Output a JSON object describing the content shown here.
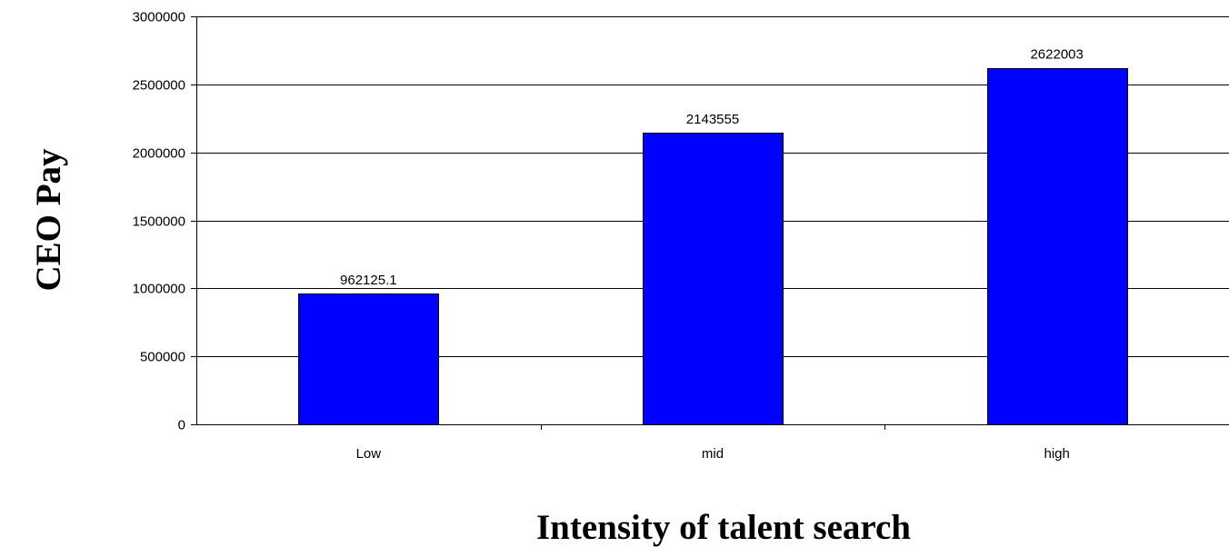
{
  "chart_data": {
    "type": "bar",
    "categories": [
      "Low",
      "mid",
      "high"
    ],
    "values": [
      962125.1,
      2143555,
      2622003
    ],
    "data_labels": [
      "962125.1",
      "2143555",
      "2622003"
    ],
    "title": "",
    "xlabel": "Intensity of talent search",
    "ylabel": "CEO Pay",
    "ylim": [
      0,
      3000000
    ],
    "yticks": [
      0,
      500000,
      1000000,
      1500000,
      2000000,
      2500000,
      3000000
    ],
    "ytick_labels": [
      "0",
      "500000",
      "1000000",
      "1500000",
      "2000000",
      "2500000",
      "3000000"
    ],
    "grid": "horizontal major gridlines",
    "legend": "none",
    "bar_color": "#0000FF"
  }
}
